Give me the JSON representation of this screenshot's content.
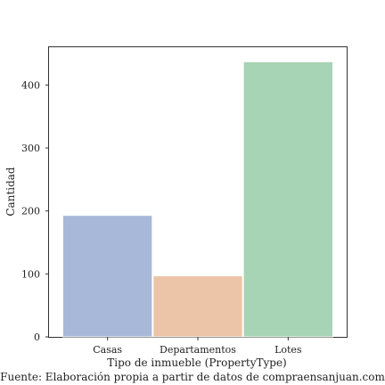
{
  "chart_data": {
    "type": "bar",
    "categories": [
      "Casas",
      "Departamentos",
      "Lotes"
    ],
    "values": [
      193,
      97,
      437
    ],
    "colors": [
      "#a7b8d8",
      "#ecc4a7",
      "#a7d4b4"
    ],
    "xlabel": "Tipo de inmueble (PropertyType)",
    "ylabel": "Cantidad",
    "ylim": [
      0,
      460
    ],
    "yticks": [
      0,
      100,
      200,
      300,
      400
    ],
    "grid": false,
    "legend": "none",
    "source": "Fuente: Elaboración propia a partir de datos de compraensanjuan.com"
  }
}
